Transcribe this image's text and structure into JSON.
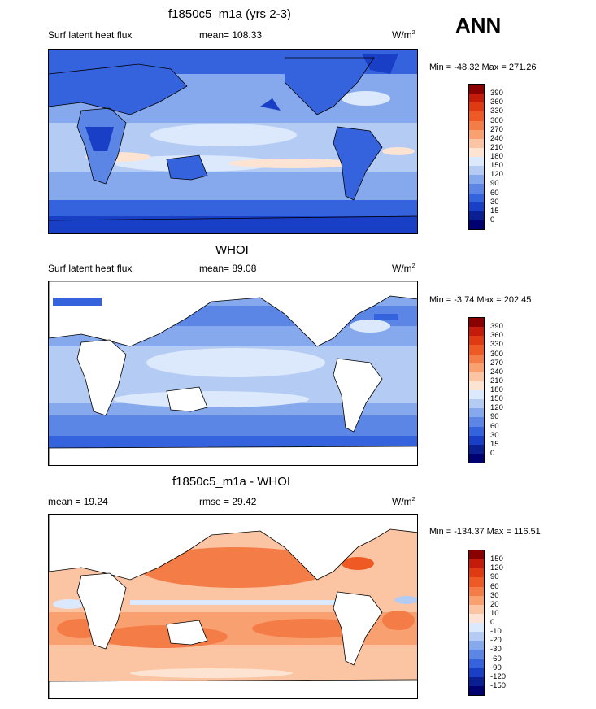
{
  "season": "ANN",
  "panels": [
    {
      "title": "f1850c5_m1a (yrs 2-3)",
      "left_label": "Surf latent heat flux",
      "center_label": "mean= 108.33",
      "unit": "W/m",
      "unit_exp": "2",
      "minmax": "Min = -48.32 Max = 271.26",
      "levels": [
        "390",
        "360",
        "330",
        "300",
        "270",
        "240",
        "210",
        "180",
        "150",
        "120",
        "90",
        "60",
        "30",
        "15",
        "0"
      ],
      "colors": [
        "#8b0000",
        "#c51b0a",
        "#e03a13",
        "#ef5a24",
        "#f47c46",
        "#f8a070",
        "#fbc4a3",
        "#fde3d2",
        "#dce8fb",
        "#b4cbf4",
        "#86a8ec",
        "#5c86e6",
        "#3563dd",
        "#1a3fc7",
        "#0a1f91",
        "#000070"
      ]
    },
    {
      "title": "WHOI",
      "left_label": "Surf latent heat flux",
      "center_label": "mean=  89.08",
      "unit": "W/m",
      "unit_exp": "2",
      "minmax": "Min =  -3.74 Max = 202.45",
      "levels": [
        "390",
        "360",
        "330",
        "300",
        "270",
        "240",
        "210",
        "180",
        "150",
        "120",
        "90",
        "60",
        "30",
        "15",
        "0"
      ],
      "colors": [
        "#8b0000",
        "#c51b0a",
        "#e03a13",
        "#ef5a24",
        "#f47c46",
        "#f8a070",
        "#fbc4a3",
        "#fde3d2",
        "#dce8fb",
        "#b4cbf4",
        "#86a8ec",
        "#5c86e6",
        "#3563dd",
        "#1a3fc7",
        "#0a1f91",
        "#000070"
      ]
    },
    {
      "title": "f1850c5_m1a - WHOI",
      "left_label": "mean =  19.24",
      "center_label": "rmse =  29.42",
      "unit": "W/m",
      "unit_exp": "2",
      "minmax": "Min = -134.37 Max = 116.51",
      "levels": [
        "150",
        "120",
        "90",
        "60",
        "30",
        "20",
        "10",
        "0",
        "-10",
        "-20",
        "-30",
        "-60",
        "-90",
        "-120",
        "-150"
      ],
      "colors": [
        "#8b0000",
        "#c51b0a",
        "#e03a13",
        "#ef5a24",
        "#f47c46",
        "#f8a070",
        "#fbc4a3",
        "#fde3d2",
        "#dce8fb",
        "#b4cbf4",
        "#86a8ec",
        "#5c86e6",
        "#3563dd",
        "#1a3fc7",
        "#0a1f91",
        "#000070"
      ]
    }
  ],
  "chart_data": [
    {
      "type": "heatmap",
      "title": "f1850c5_m1a (yrs 2-3)",
      "variable": "Surf latent heat flux",
      "mean": 108.33,
      "min": -48.32,
      "max": 271.26,
      "units": "W/m2",
      "contour_levels": [
        0,
        15,
        30,
        60,
        90,
        120,
        150,
        180,
        210,
        240,
        270,
        300,
        330,
        360,
        390
      ]
    },
    {
      "type": "heatmap",
      "title": "WHOI",
      "variable": "Surf latent heat flux",
      "mean": 89.08,
      "min": -3.74,
      "max": 202.45,
      "units": "W/m2",
      "contour_levels": [
        0,
        15,
        30,
        60,
        90,
        120,
        150,
        180,
        210,
        240,
        270,
        300,
        330,
        360,
        390
      ]
    },
    {
      "type": "heatmap",
      "title": "f1850c5_m1a - WHOI",
      "mean": 19.24,
      "rmse": 29.42,
      "min": -134.37,
      "max": 116.51,
      "units": "W/m2",
      "contour_levels": [
        -150,
        -120,
        -90,
        -60,
        -30,
        -20,
        -10,
        0,
        10,
        20,
        30,
        60,
        90,
        120,
        150
      ]
    }
  ]
}
